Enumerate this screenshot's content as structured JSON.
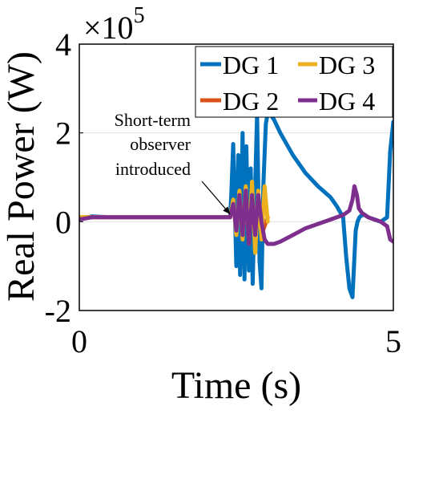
{
  "chart_data": {
    "type": "line",
    "title": "",
    "xlabel": "Time (s)",
    "ylabel": "Real Power (W)",
    "xlim": [
      0,
      5
    ],
    "ylim": [
      -200000,
      400000
    ],
    "y_exponent_label": "×10",
    "y_exponent_power": "5",
    "xticks": [
      0,
      5
    ],
    "xtick_labels": [
      "0",
      "5"
    ],
    "yticks": [
      -200000,
      0,
      200000,
      400000
    ],
    "ytick_labels": [
      "-2",
      "0",
      "2",
      "4"
    ],
    "grid": true,
    "legend_placement": "top-right",
    "annotation": {
      "lines": [
        "Short-term",
        "observer",
        "introduced"
      ],
      "x": 2.4,
      "y": 10000
    },
    "series": [
      {
        "name": "DG 1",
        "color": "#0072BD",
        "x": [
          0,
          0.2,
          0.5,
          1.0,
          1.5,
          2.0,
          2.3,
          2.4,
          2.42,
          2.45,
          2.5,
          2.53,
          2.56,
          2.6,
          2.63,
          2.66,
          2.7,
          2.73,
          2.76,
          2.8,
          2.83,
          2.87,
          2.9,
          2.93,
          2.97,
          3.0,
          3.05,
          3.1,
          3.2,
          3.4,
          3.6,
          3.8,
          4.0,
          4.1,
          4.2,
          4.25,
          4.3,
          4.35,
          4.38,
          4.4,
          4.43,
          4.46,
          4.5,
          4.55,
          4.6,
          4.7,
          4.8,
          4.9,
          4.95,
          5.0
        ],
        "y": [
          5000,
          12000,
          10000,
          10000,
          10000,
          10000,
          10000,
          10000,
          60000,
          175000,
          -100000,
          150000,
          -120000,
          200000,
          -130000,
          170000,
          -110000,
          120000,
          -140000,
          80000,
          240000,
          -90000,
          -150000,
          80000,
          220000,
          245000,
          240000,
          230000,
          200000,
          150000,
          110000,
          80000,
          55000,
          35000,
          10000,
          -80000,
          -150000,
          -170000,
          -80000,
          -20000,
          0,
          10000,
          15000,
          15000,
          10000,
          5000,
          0,
          10000,
          160000,
          225000
        ]
      },
      {
        "name": "DG 2",
        "color": "#D95319",
        "x": [
          0,
          1.0,
          2.0,
          2.3,
          2.4,
          2.45,
          2.5,
          2.55,
          2.6,
          2.65,
          2.7,
          2.75,
          2.8,
          2.85,
          2.9,
          3.0
        ],
        "y": [
          10000,
          10000,
          10000,
          10000,
          10000,
          40000,
          -10000,
          50000,
          -20000,
          60000,
          -30000,
          70000,
          -50000,
          60000,
          -30000,
          10000
        ]
      },
      {
        "name": "DG 3",
        "color": "#EDB120",
        "x": [
          0,
          1.0,
          2.0,
          2.3,
          2.4,
          2.45,
          2.5,
          2.55,
          2.6,
          2.65,
          2.7,
          2.75,
          2.8,
          2.85,
          2.9,
          2.95,
          3.0
        ],
        "y": [
          10000,
          10000,
          10000,
          10000,
          10000,
          50000,
          -30000,
          70000,
          -40000,
          80000,
          -50000,
          90000,
          -70000,
          70000,
          -40000,
          80000,
          0
        ]
      },
      {
        "name": "DG 4",
        "color": "#7E2F8E",
        "x": [
          0,
          0.2,
          0.5,
          1.0,
          1.5,
          2.0,
          2.3,
          2.4,
          2.45,
          2.5,
          2.55,
          2.6,
          2.65,
          2.7,
          2.75,
          2.8,
          2.85,
          2.9,
          2.95,
          3.0,
          3.1,
          3.2,
          3.4,
          3.6,
          3.8,
          4.0,
          4.2,
          4.3,
          4.35,
          4.38,
          4.42,
          4.45,
          4.5,
          4.55,
          4.6,
          4.7,
          4.8,
          4.9,
          4.95,
          5.0
        ],
        "y": [
          5000,
          10000,
          10000,
          10000,
          10000,
          10000,
          10000,
          10000,
          40000,
          -20000,
          60000,
          -30000,
          70000,
          -50000,
          60000,
          -30000,
          60000,
          0,
          -40000,
          -50000,
          -50000,
          -45000,
          -30000,
          -15000,
          -5000,
          5000,
          15000,
          25000,
          50000,
          80000,
          60000,
          30000,
          20000,
          15000,
          10000,
          5000,
          0,
          -10000,
          -40000,
          -45000
        ]
      }
    ]
  }
}
